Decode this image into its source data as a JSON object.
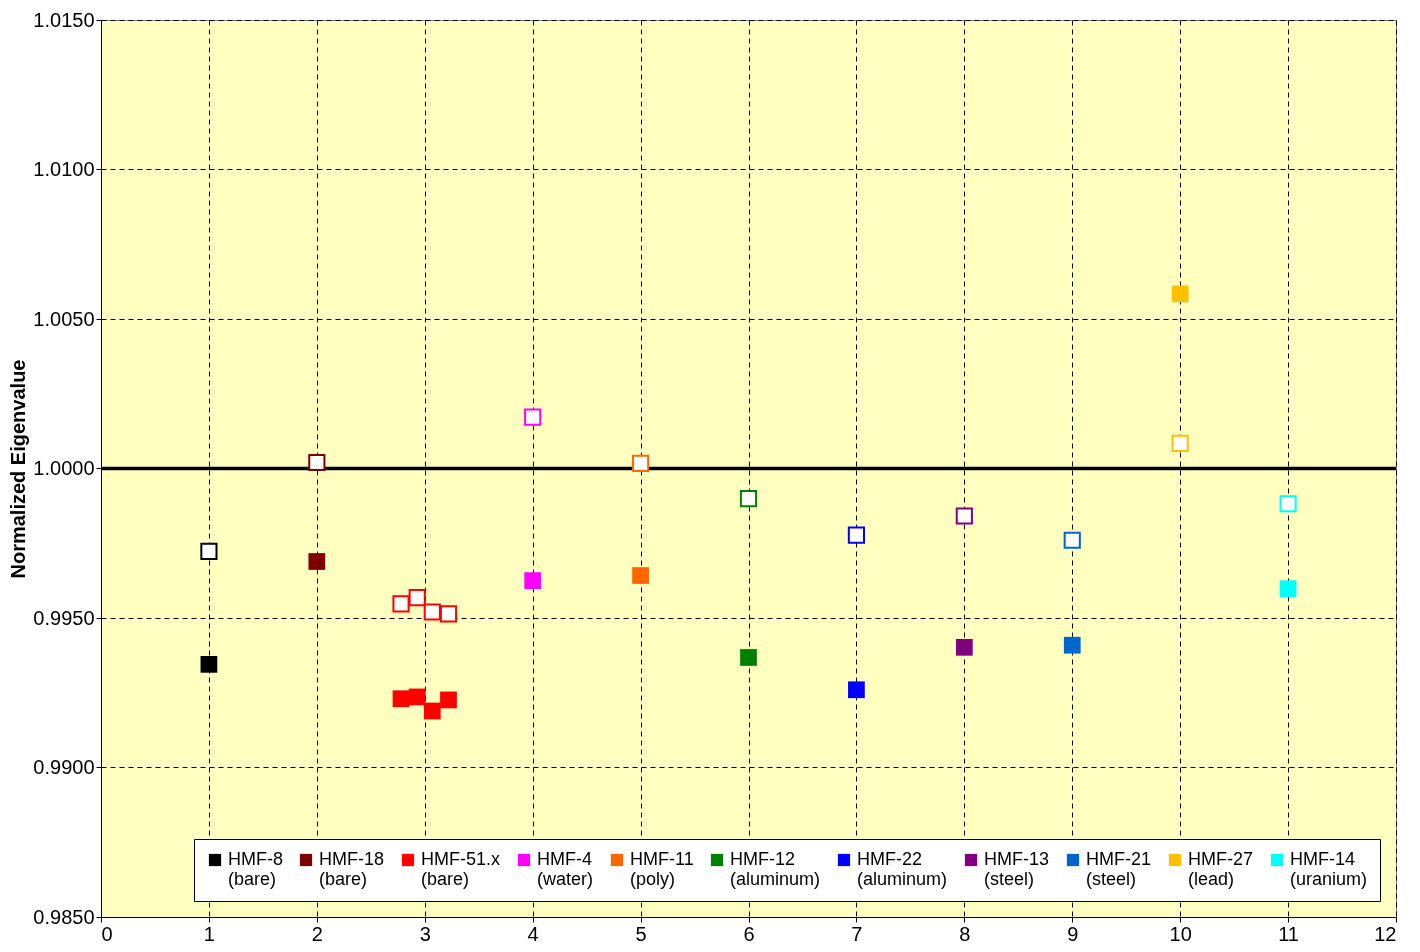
{
  "chart_data": {
    "type": "scatter",
    "ylabel": "Normalized Eigenvalue",
    "marker": "square",
    "grid": true,
    "legend": "bottom",
    "xlim": [
      0,
      12
    ],
    "xticks": [
      0,
      1,
      2,
      3,
      4,
      5,
      6,
      7,
      8,
      9,
      10,
      11,
      12
    ],
    "ylim": [
      0.985,
      1.015
    ],
    "yticks": [
      {
        "value": 0.985,
        "label": "0.9850"
      },
      {
        "value": 0.99,
        "label": "0.9900"
      },
      {
        "value": 0.995,
        "label": "0.9950"
      },
      {
        "value": 1.0,
        "label": "1.0000"
      },
      {
        "value": 1.005,
        "label": "1.0050"
      },
      {
        "value": 1.01,
        "label": "1.0100"
      },
      {
        "value": 1.015,
        "label": "1.0150"
      }
    ],
    "ref_lines": [
      {
        "axis": "y",
        "value": 1.0,
        "label": null,
        "color": "#000000",
        "line_style": "solid"
      }
    ],
    "series": [
      {
        "name": "HMF-8\n(bare)",
        "color": "#000000",
        "x": [
          1
        ],
        "values": [
          0.99345
        ]
      },
      {
        "name": "HMF-18\n(bare)",
        "color": "#800000",
        "x": [
          2
        ],
        "values": [
          0.99689
        ]
      },
      {
        "name": "HMF-51.x\n(bare)",
        "color": "#ff0000",
        "x": [
          2.78,
          2.93,
          3.07,
          3.22
        ],
        "values": [
          0.9923,
          0.99236,
          0.99189,
          0.99226
        ]
      },
      {
        "name": "HMF-4\n(water)",
        "color": "#ff00ff",
        "x": [
          4
        ],
        "values": [
          0.99625
        ]
      },
      {
        "name": "HMF-11\n(poly)",
        "color": "#ff6600",
        "x": [
          5
        ],
        "values": [
          0.99642
        ]
      },
      {
        "name": "HMF-12\n(aluminum)",
        "color": "#008000",
        "x": [
          6
        ],
        "values": [
          0.99368
        ]
      },
      {
        "name": "HMF-22\n(aluminum)",
        "color": "#0000ff",
        "x": [
          7
        ],
        "values": [
          0.9926
        ]
      },
      {
        "name": "HMF-13\n(steel)",
        "color": "#800080",
        "x": [
          8
        ],
        "values": [
          0.99402
        ]
      },
      {
        "name": "HMF-21\n(steel)",
        "color": "#0066cc",
        "x": [
          9
        ],
        "values": [
          0.99409
        ]
      },
      {
        "name": "HMF-27\n(lead)",
        "color": "#ffc000",
        "x": [
          10
        ],
        "values": [
          1.00584
        ]
      },
      {
        "name": "HMF-14\n(uranium)",
        "color": "#00ffff",
        "x": [
          11
        ],
        "values": [
          0.99598
        ]
      },
      {
        "color": "#000000",
        "x": [
          1
        ],
        "values": [
          0.99723
        ]
      },
      {
        "color": "#800000",
        "x": [
          2
        ],
        "values": [
          1.0002
        ]
      },
      {
        "color": "#ff0000",
        "x": [
          2.78,
          2.93,
          3.07,
          3.22
        ],
        "values": [
          0.99547,
          0.99568,
          0.9952,
          0.99514
        ]
      },
      {
        "color": "#ff00ff",
        "x": [
          4
        ],
        "values": [
          1.00172
        ]
      },
      {
        "color": "#ff6600",
        "x": [
          5
        ],
        "values": [
          1.00017
        ]
      },
      {
        "color": "#008000",
        "x": [
          6
        ],
        "values": [
          0.99899
        ]
      },
      {
        "color": "#0000ff",
        "x": [
          7
        ],
        "values": [
          0.99777
        ]
      },
      {
        "color": "#800080",
        "x": [
          8
        ],
        "values": [
          0.99841
        ]
      },
      {
        "color": "#0066cc",
        "x": [
          9
        ],
        "values": [
          0.9976
        ]
      },
      {
        "color": "#ffc000",
        "x": [
          10
        ],
        "values": [
          1.00084
        ]
      },
      {
        "color": "#00ffff",
        "x": [
          11
        ],
        "values": [
          0.99882
        ]
      }
    ]
  }
}
